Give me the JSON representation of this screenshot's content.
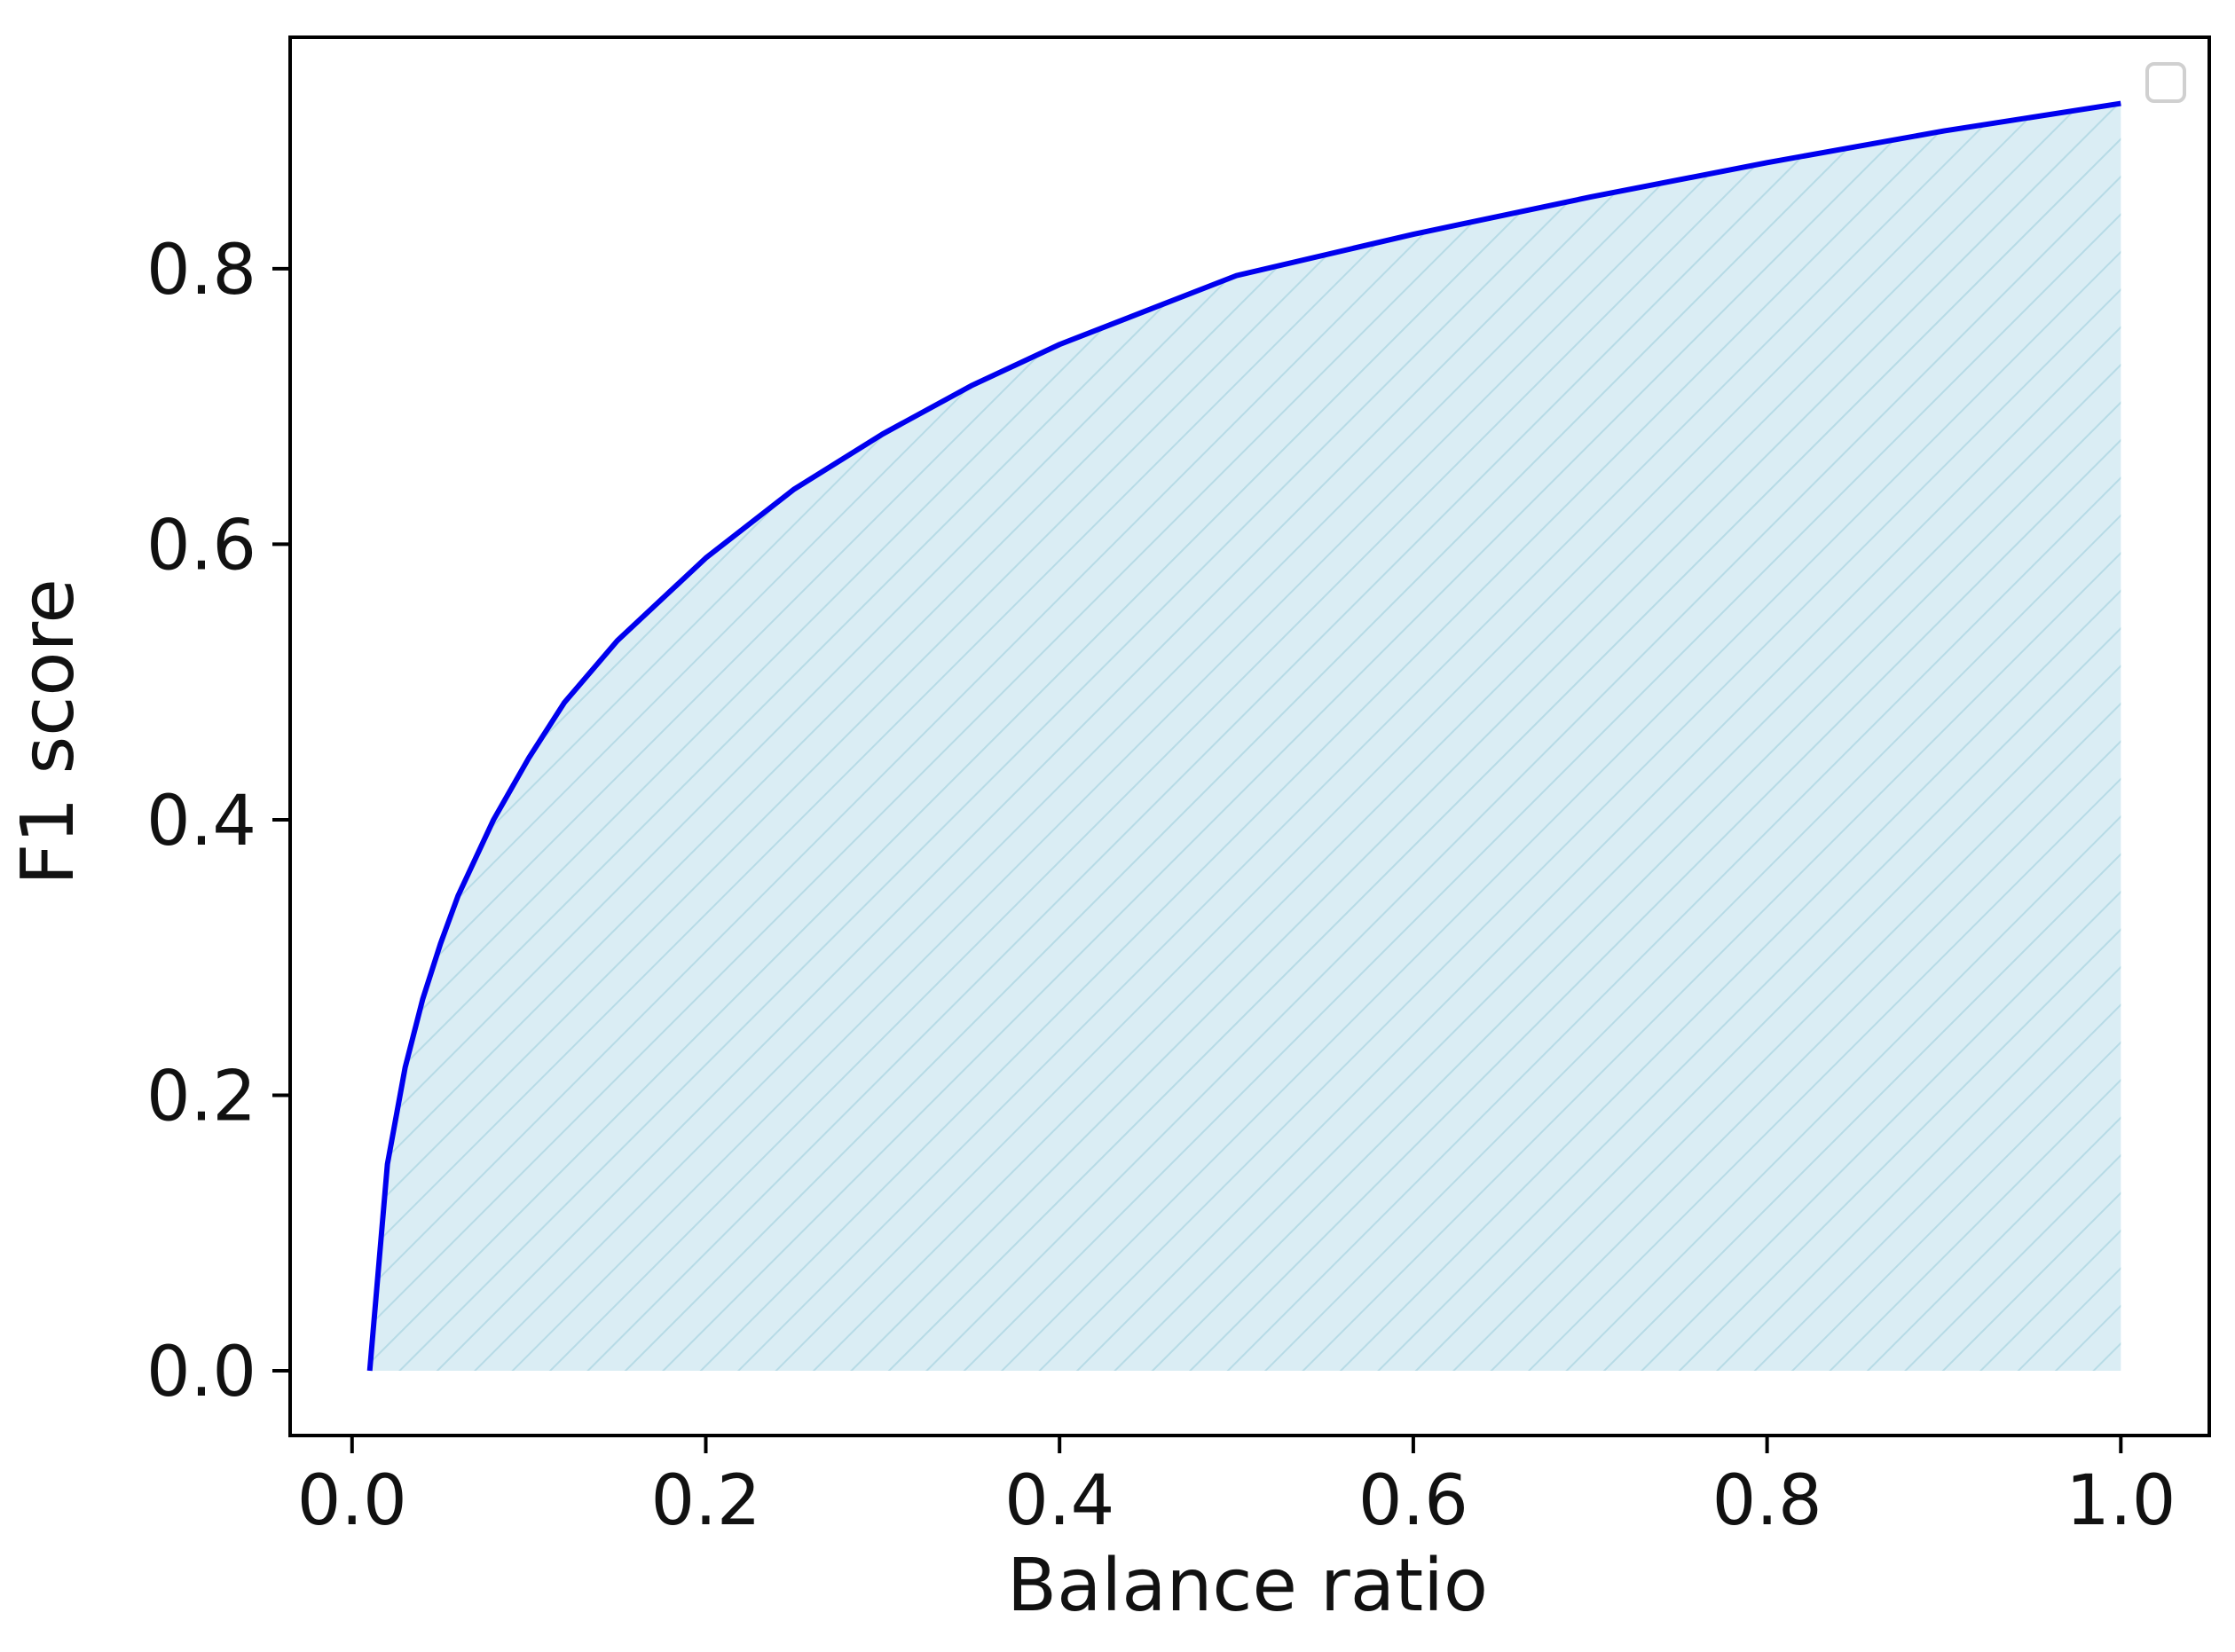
{
  "chart_data": {
    "type": "area",
    "title": "",
    "xlabel": "Balance ratio",
    "ylabel": "F1 score",
    "xlim": [
      -0.035,
      1.05
    ],
    "ylim": [
      -0.047,
      0.968
    ],
    "xticks": [
      0.0,
      0.2,
      0.4,
      0.6,
      0.8,
      1.0
    ],
    "yticks": [
      0.0,
      0.2,
      0.4,
      0.6,
      0.8
    ],
    "xtick_labels": [
      "0.0",
      "0.2",
      "0.4",
      "0.6",
      "0.8",
      "1.0"
    ],
    "ytick_labels": [
      "0.0",
      "0.2",
      "0.4",
      "0.6",
      "0.8"
    ],
    "grid": false,
    "legend": {
      "placement": "top-right",
      "entries": []
    },
    "series": [
      {
        "line_color": "#0000ee",
        "fill_color": "#add8e6",
        "fill_hatch": "diagonal",
        "fill_to": 0.0,
        "x": [
          0.01,
          0.02,
          0.03,
          0.04,
          0.05,
          0.06,
          0.08,
          0.1,
          0.12,
          0.15,
          0.2,
          0.25,
          0.3,
          0.35,
          0.4,
          0.5,
          0.6,
          0.7,
          0.8,
          0.9,
          1.0
        ],
        "y": [
          0.0,
          0.15,
          0.22,
          0.27,
          0.31,
          0.345,
          0.4,
          0.445,
          0.485,
          0.53,
          0.59,
          0.64,
          0.68,
          0.715,
          0.745,
          0.795,
          0.825,
          0.852,
          0.877,
          0.9,
          0.92
        ]
      }
    ]
  }
}
